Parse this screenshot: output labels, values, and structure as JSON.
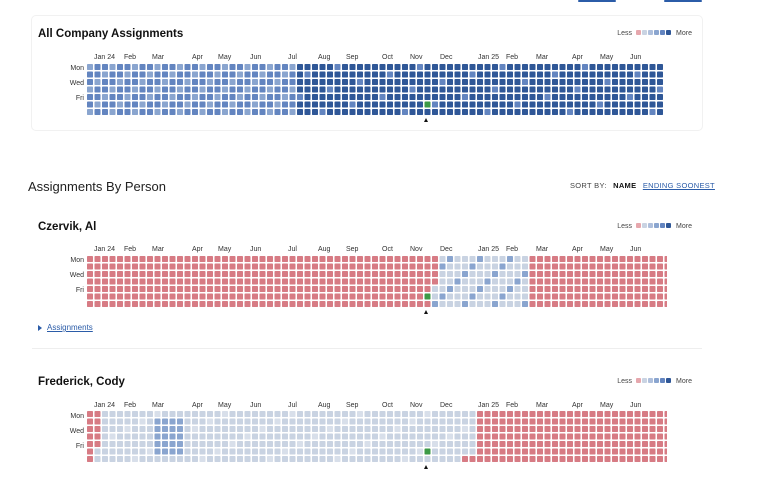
{
  "colors": {
    "blue_dark": "#2f5797",
    "blue_mid": "#6385c0",
    "blue_light": "#8aa5cf",
    "grey_blue": "#c9d3e2",
    "red": "#d77b84",
    "red_light": "#e6a7ad",
    "today": "#3c9a46",
    "link": "#2b5ca8"
  },
  "months": [
    "Jan 24",
    "Feb",
    "Mar",
    "Apr",
    "May",
    "Jun",
    "Jul",
    "Aug",
    "Sep",
    "Oct",
    "Nov",
    "Dec",
    "Jan 25",
    "Feb",
    "Mar",
    "Apr",
    "May",
    "Jun"
  ],
  "day_labels": [
    "Mon",
    "Wed",
    "Fri"
  ],
  "legend": {
    "less": "Less",
    "more": "More"
  },
  "company": {
    "title": "All Company Assignments"
  },
  "section": {
    "title": "Assignments By Person",
    "sort_label": "SORT BY:",
    "sort_name": "NAME",
    "sort_ending": "ENDING SOONEST"
  },
  "people": [
    {
      "name": "Czervik, Al",
      "assignments_label": "Assignments"
    },
    {
      "name": "Frederick, Cody"
    }
  ]
}
